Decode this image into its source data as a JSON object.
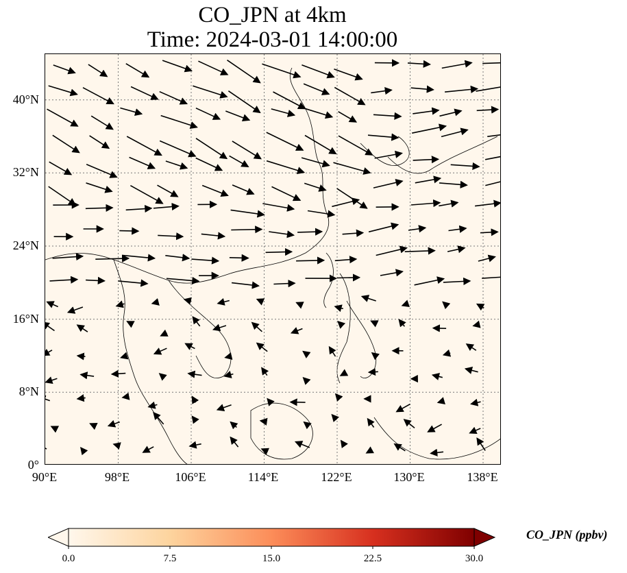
{
  "title": {
    "line1": "CO_JPN at 4km",
    "line2": "Time: 2024-03-01 14:00:00"
  },
  "map": {
    "variable": "CO_JPN",
    "lon_range": [
      90,
      140
    ],
    "lat_range": [
      0,
      45
    ],
    "lon_ticks": [
      "90°E",
      "98°E",
      "106°E",
      "114°E",
      "122°E",
      "130°E",
      "138°E"
    ],
    "lat_ticks": [
      "0°",
      "8°N",
      "16°N",
      "24°N",
      "32°N",
      "40°N"
    ],
    "gridlines": "dotted gray",
    "background_color": "#fff7ec",
    "features": [
      "coastlines",
      "country-borders",
      "wind-vectors"
    ]
  },
  "colorbar": {
    "label": "CO_JPN (ppbv)",
    "ticks": [
      "0.0",
      "7.5",
      "15.0",
      "22.5",
      "30.0"
    ],
    "range": [
      0,
      30
    ],
    "extend": "both",
    "colormap": [
      "#fff7ec",
      "#fdd49e",
      "#fc8d59",
      "#d7301f",
      "#7f0000"
    ]
  }
}
